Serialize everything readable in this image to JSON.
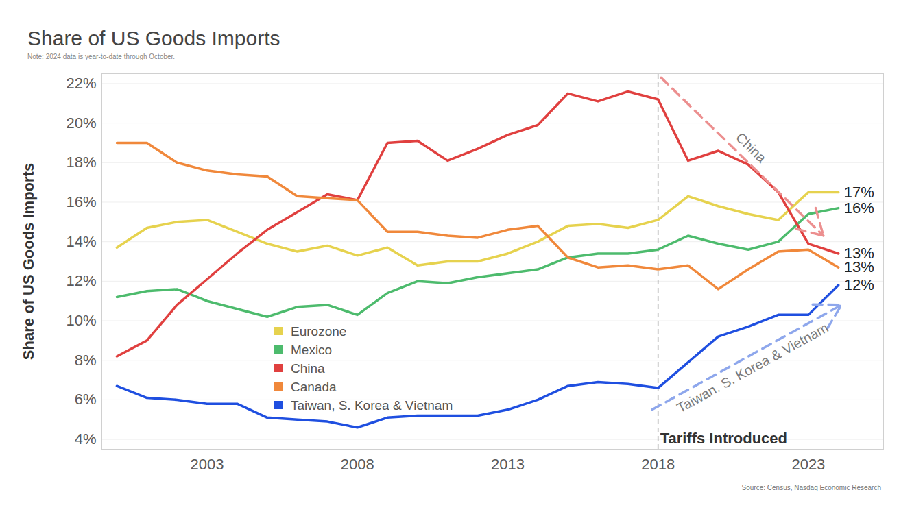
{
  "chart_data": {
    "type": "line",
    "title": "Share of US Goods Imports",
    "subtitle": "Note: 2024 data is year-to-date through October.",
    "source": "Source: Census, Nasdaq Economic Research",
    "y_label": "Share of US Goods Imports",
    "x": [
      2000,
      2001,
      2002,
      2003,
      2004,
      2005,
      2006,
      2007,
      2008,
      2009,
      2010,
      2011,
      2012,
      2013,
      2014,
      2015,
      2016,
      2017,
      2018,
      2019,
      2020,
      2021,
      2022,
      2023,
      2024
    ],
    "xlim": [
      1999.5,
      2025.5
    ],
    "xticks": [
      2003,
      2008,
      2013,
      2018,
      2023
    ],
    "ylim": [
      3.5,
      22.5
    ],
    "yticks": [
      {
        "value": 4,
        "label": "4%"
      },
      {
        "value": 6,
        "label": "6%"
      },
      {
        "value": 8,
        "label": "8%"
      },
      {
        "value": 10,
        "label": "10%"
      },
      {
        "value": 12,
        "label": "12%"
      },
      {
        "value": 14,
        "label": "14%"
      },
      {
        "value": 16,
        "label": "16%"
      },
      {
        "value": 18,
        "label": "18%"
      },
      {
        "value": 20,
        "label": "20%"
      },
      {
        "value": 22,
        "label": "22%"
      }
    ],
    "grid": true,
    "series": [
      {
        "name": "Eurozone",
        "color": "#e6d24e",
        "end_label": "17%",
        "values": [
          13.7,
          14.7,
          15.0,
          15.1,
          14.5,
          13.9,
          13.5,
          13.8,
          13.3,
          13.7,
          12.8,
          13.0,
          13.0,
          13.4,
          14.0,
          14.8,
          14.9,
          14.7,
          15.1,
          16.3,
          15.8,
          15.4,
          15.1,
          16.5,
          16.5
        ]
      },
      {
        "name": "Mexico",
        "color": "#4dbb6d",
        "end_label": "16%",
        "values": [
          11.2,
          11.5,
          11.6,
          11.0,
          10.6,
          10.2,
          10.7,
          10.8,
          10.3,
          11.4,
          12.0,
          11.9,
          12.2,
          12.4,
          12.6,
          13.2,
          13.4,
          13.4,
          13.6,
          14.3,
          13.9,
          13.6,
          14.0,
          15.4,
          15.7
        ]
      },
      {
        "name": "China",
        "color": "#e0403f",
        "end_label": "13%",
        "values": [
          8.2,
          9.0,
          10.8,
          12.1,
          13.4,
          14.6,
          15.5,
          16.4,
          16.1,
          19.0,
          19.1,
          18.1,
          18.7,
          19.4,
          19.9,
          21.5,
          21.1,
          21.6,
          21.2,
          18.1,
          18.6,
          17.9,
          16.5,
          13.9,
          13.4
        ]
      },
      {
        "name": "Canada",
        "color": "#f0883b",
        "end_label": "13%",
        "values": [
          19.0,
          19.0,
          18.0,
          17.6,
          17.4,
          17.3,
          16.3,
          16.2,
          16.1,
          14.5,
          14.5,
          14.3,
          14.2,
          14.6,
          14.8,
          13.2,
          12.7,
          12.8,
          12.6,
          12.8,
          11.6,
          12.6,
          13.5,
          13.6,
          12.7
        ]
      },
      {
        "name": "Taiwan, S. Korea & Vietnam",
        "color": "#1f4fe0",
        "end_label": "12%",
        "values": [
          6.7,
          6.1,
          6.0,
          5.8,
          5.8,
          5.1,
          5.0,
          4.9,
          4.6,
          5.1,
          5.2,
          5.2,
          5.2,
          5.5,
          6.0,
          6.7,
          6.9,
          6.8,
          6.6,
          7.9,
          9.2,
          9.7,
          10.3,
          10.3,
          11.8
        ]
      }
    ],
    "vertical_line": {
      "x": 2018,
      "text": "Tariffs Introduced"
    },
    "arrows": [
      {
        "text": "China",
        "color": "#ec8f8f",
        "x1": 2018.1,
        "y1": 22.3,
        "x2": 2023.5,
        "y2": 14.3
      },
      {
        "text": "Taiwan. S. Korea & Vietnam",
        "color": "#8ea7ec",
        "x1": 2017.8,
        "y1": 5.5,
        "x2": 2024.1,
        "y2": 10.8
      }
    ]
  }
}
